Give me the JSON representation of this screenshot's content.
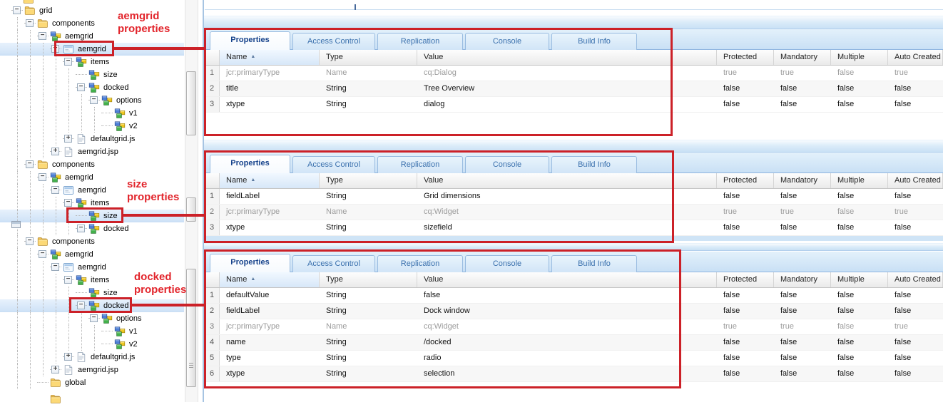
{
  "annotations": {
    "label1": {
      "line1": "aemgrid",
      "line2": "properties"
    },
    "label2": {
      "line1": "size",
      "line2": "properties"
    },
    "label3": {
      "line1": "docked",
      "line2": "properties"
    },
    "accent_red": "#cc2128"
  },
  "tree": {
    "nodes": [
      {
        "label": "grid",
        "level": 1,
        "icon": "folder",
        "expander": "minus",
        "selected": false
      },
      {
        "label": "components",
        "level": 2,
        "icon": "folder",
        "expander": "minus",
        "selected": false
      },
      {
        "label": "aemgrid",
        "level": 3,
        "icon": "node",
        "expander": "minus",
        "selected": false
      },
      {
        "label": "aemgrid",
        "level": 4,
        "icon": "dialog",
        "expander": "minus",
        "selected": true
      },
      {
        "label": "items",
        "level": 5,
        "icon": "node",
        "expander": "minus",
        "selected": false
      },
      {
        "label": "size",
        "level": 6,
        "icon": "node",
        "expander": "none",
        "selected": false
      },
      {
        "label": "docked",
        "level": 6,
        "icon": "node",
        "expander": "minus",
        "selected": false
      },
      {
        "label": "options",
        "level": 7,
        "icon": "node",
        "expander": "minus",
        "selected": false
      },
      {
        "label": "v1",
        "level": 8,
        "icon": "node",
        "expander": "none",
        "selected": false
      },
      {
        "label": "v2",
        "level": 8,
        "icon": "node",
        "expander": "none",
        "selected": false
      },
      {
        "label": "defaultgrid.js",
        "level": 5,
        "icon": "file",
        "expander": "plus",
        "selected": false
      },
      {
        "label": "aemgrid.jsp",
        "level": 4,
        "icon": "file",
        "expander": "plus",
        "selected": false
      },
      {
        "label": "components",
        "level": 2,
        "icon": "folder",
        "expander": "minus",
        "selected": false
      },
      {
        "label": "aemgrid",
        "level": 3,
        "icon": "node",
        "expander": "minus",
        "selected": false
      },
      {
        "label": "aemgrid",
        "level": 4,
        "icon": "dialog",
        "expander": "minus",
        "selected": false
      },
      {
        "label": "items",
        "level": 5,
        "icon": "node",
        "expander": "minus",
        "selected": false
      },
      {
        "label": "size",
        "level": 6,
        "icon": "node",
        "expander": "none",
        "selected": true
      },
      {
        "label": "docked",
        "level": 6,
        "icon": "node",
        "expander": "minus",
        "selected": false
      },
      {
        "label": "components",
        "level": 2,
        "icon": "folder",
        "expander": "minus",
        "selected": false
      },
      {
        "label": "aemgrid",
        "level": 3,
        "icon": "node",
        "expander": "minus",
        "selected": false
      },
      {
        "label": "aemgrid",
        "level": 4,
        "icon": "dialog",
        "expander": "minus",
        "selected": false
      },
      {
        "label": "items",
        "level": 5,
        "icon": "node",
        "expander": "minus",
        "selected": false
      },
      {
        "label": "size",
        "level": 6,
        "icon": "node",
        "expander": "none",
        "selected": false
      },
      {
        "label": "docked",
        "level": 6,
        "icon": "node",
        "expander": "minus",
        "selected": true
      },
      {
        "label": "options",
        "level": 7,
        "icon": "node",
        "expander": "minus",
        "selected": false
      },
      {
        "label": "v1",
        "level": 8,
        "icon": "node",
        "expander": "none",
        "selected": false
      },
      {
        "label": "v2",
        "level": 8,
        "icon": "node",
        "expander": "none",
        "selected": false
      },
      {
        "label": "defaultgrid.js",
        "level": 5,
        "icon": "file",
        "expander": "plus",
        "selected": false
      },
      {
        "label": "aemgrid.jsp",
        "level": 4,
        "icon": "file",
        "expander": "plus",
        "selected": false
      },
      {
        "label": "global",
        "level": 3,
        "icon": "folder",
        "expander": "none",
        "selected": false
      }
    ]
  },
  "panels": [
    {
      "tabs": [
        "Properties",
        "Access Control",
        "Replication",
        "Console",
        "Build Info"
      ],
      "active_tab": "Properties",
      "sort": {
        "column": "Name",
        "direction": "asc"
      },
      "columns": [
        "",
        "Name",
        "Type",
        "Value",
        "Protected",
        "Mandatory",
        "Multiple",
        "Auto Created"
      ],
      "rows": [
        {
          "num": "1",
          "name": "jcr:primaryType",
          "type": "Name",
          "value": "cq:Dialog",
          "protected": "true",
          "mandatory": "true",
          "multiple": "false",
          "auto_created": "true",
          "muted": true
        },
        {
          "num": "2",
          "name": "title",
          "type": "String",
          "value": "Tree Overview",
          "protected": "false",
          "mandatory": "false",
          "multiple": "false",
          "auto_created": "false",
          "muted": false
        },
        {
          "num": "3",
          "name": "xtype",
          "type": "String",
          "value": "dialog",
          "protected": "false",
          "mandatory": "false",
          "multiple": "false",
          "auto_created": "false",
          "muted": false
        }
      ]
    },
    {
      "tabs": [
        "Properties",
        "Access Control",
        "Replication",
        "Console",
        "Build Info"
      ],
      "active_tab": "Properties",
      "sort": {
        "column": "Name",
        "direction": "asc"
      },
      "columns": [
        "",
        "Name",
        "Type",
        "Value",
        "Protected",
        "Mandatory",
        "Multiple",
        "Auto Created"
      ],
      "rows": [
        {
          "num": "1",
          "name": "fieldLabel",
          "type": "String",
          "value": "Grid dimensions",
          "protected": "false",
          "mandatory": "false",
          "multiple": "false",
          "auto_created": "false",
          "muted": false
        },
        {
          "num": "2",
          "name": "jcr:primaryType",
          "type": "Name",
          "value": "cq:Widget",
          "protected": "true",
          "mandatory": "true",
          "multiple": "false",
          "auto_created": "true",
          "muted": true
        },
        {
          "num": "3",
          "name": "xtype",
          "type": "String",
          "value": "sizefield",
          "protected": "false",
          "mandatory": "false",
          "multiple": "false",
          "auto_created": "false",
          "muted": false
        }
      ]
    },
    {
      "tabs": [
        "Properties",
        "Access Control",
        "Replication",
        "Console",
        "Build Info"
      ],
      "active_tab": "Properties",
      "sort": {
        "column": "Name",
        "direction": "asc"
      },
      "columns": [
        "",
        "Name",
        "Type",
        "Value",
        "Protected",
        "Mandatory",
        "Multiple",
        "Auto Created"
      ],
      "rows": [
        {
          "num": "1",
          "name": "defaultValue",
          "type": "String",
          "value": "false",
          "protected": "false",
          "mandatory": "false",
          "multiple": "false",
          "auto_created": "false",
          "muted": false
        },
        {
          "num": "2",
          "name": "fieldLabel",
          "type": "String",
          "value": "Dock window",
          "protected": "false",
          "mandatory": "false",
          "multiple": "false",
          "auto_created": "false",
          "muted": false
        },
        {
          "num": "3",
          "name": "jcr:primaryType",
          "type": "Name",
          "value": "cq:Widget",
          "protected": "true",
          "mandatory": "true",
          "multiple": "false",
          "auto_created": "true",
          "muted": true
        },
        {
          "num": "4",
          "name": "name",
          "type": "String",
          "value": "/docked",
          "protected": "false",
          "mandatory": "false",
          "multiple": "false",
          "auto_created": "false",
          "muted": false
        },
        {
          "num": "5",
          "name": "type",
          "type": "String",
          "value": "radio",
          "protected": "false",
          "mandatory": "false",
          "multiple": "false",
          "auto_created": "false",
          "muted": false
        },
        {
          "num": "6",
          "name": "xtype",
          "type": "String",
          "value": "selection",
          "protected": "false",
          "mandatory": "false",
          "multiple": "false",
          "auto_created": "false",
          "muted": false
        }
      ]
    }
  ]
}
